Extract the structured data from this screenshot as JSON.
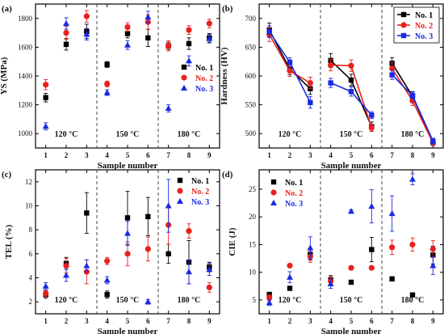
{
  "chart_data": [
    {
      "panel": "(a)",
      "type": "scatter",
      "xlabel": "Sample number",
      "ylabel": "YS (MPa)",
      "x": [
        1,
        2,
        3,
        4,
        5,
        6,
        7,
        8,
        9
      ],
      "xlim": [
        0.5,
        9.5
      ],
      "ylim": [
        900,
        1900
      ],
      "yticks": [
        1000,
        1200,
        1400,
        1600,
        1800
      ],
      "series": [
        {
          "name": "No. 1",
          "color": "#000000",
          "marker": "square",
          "values": [
            1250,
            1620,
            1710,
            1480,
            1695,
            1665,
            1610,
            1625,
            1665
          ],
          "errors": [
            30,
            40,
            50,
            20,
            30,
            60,
            25,
            40,
            30
          ]
        },
        {
          "name": "No. 2",
          "color": "#e8211d",
          "marker": "circle",
          "values": [
            1340,
            1700,
            1815,
            1345,
            1740,
            1775,
            1610,
            1720,
            1765
          ],
          "errors": [
            35,
            45,
            40,
            20,
            30,
            50,
            35,
            30,
            30
          ]
        },
        {
          "name": "No. 3",
          "color": "#1b2ae0",
          "marker": "triangle",
          "values": [
            1050,
            1765,
            1690,
            1285,
            1615,
            1810,
            1175,
            1505,
            1660
          ],
          "errors": [
            25,
            40,
            40,
            20,
            30,
            40,
            25,
            35,
            30
          ]
        }
      ],
      "legend": "right",
      "dividers": [
        3.5,
        6.5
      ],
      "temperatures": [
        "120 °C",
        "150 °C",
        "180 °C"
      ]
    },
    {
      "panel": "(b)",
      "type": "line",
      "xlabel": "Sample number",
      "ylabel": "Hardness (HV)",
      "x": [
        1,
        2,
        3,
        4,
        5,
        6,
        7,
        8,
        9
      ],
      "xlim": [
        0.5,
        9.5
      ],
      "ylim": [
        475,
        725
      ],
      "yticks": [
        500,
        550,
        600,
        650,
        700
      ],
      "series": [
        {
          "name": "No. 1",
          "color": "#000000",
          "marker": "square",
          "values": [
            680,
            612,
            578,
            627,
            593,
            512,
            622,
            565,
            485
          ],
          "errors": [
            12,
            10,
            10,
            12,
            10,
            8,
            10,
            8,
            5
          ]
        },
        {
          "name": "No. 2",
          "color": "#e8211d",
          "marker": "circle",
          "values": [
            672,
            609,
            588,
            619,
            618,
            510,
            613,
            557,
            484
          ],
          "errors": [
            12,
            10,
            10,
            10,
            10,
            6,
            10,
            8,
            5
          ]
        },
        {
          "name": "No. 3",
          "color": "#1b2ae0",
          "marker": "square",
          "values": [
            677,
            624,
            554,
            588,
            573,
            532,
            602,
            566,
            487
          ],
          "errors": [
            10,
            8,
            10,
            8,
            8,
            6,
            8,
            6,
            5
          ]
        }
      ],
      "legend": "top-right",
      "dividers": [
        3.5,
        6.5
      ],
      "temperatures": [
        "120 °C",
        "150 °C",
        "180 °C"
      ]
    },
    {
      "panel": "(c)",
      "type": "scatter",
      "xlabel": "Sample number",
      "ylabel": "TEL (%)",
      "x": [
        1,
        2,
        3,
        4,
        5,
        6,
        7,
        8,
        9
      ],
      "xlim": [
        0.5,
        9.5
      ],
      "ylim": [
        1,
        13
      ],
      "yticks": [
        2,
        4,
        6,
        8,
        10,
        12
      ],
      "series": [
        {
          "name": "No. 1",
          "color": "#000000",
          "marker": "square",
          "values": [
            2.6,
            5.2,
            9.4,
            2.6,
            9.0,
            9.1,
            6.0,
            5.3,
            4.9
          ],
          "errors": [
            0.3,
            0.5,
            1.7,
            0.3,
            2.2,
            1.6,
            0.8,
            1.8,
            0.4
          ]
        },
        {
          "name": "No. 2",
          "color": "#e8211d",
          "marker": "circle",
          "values": [
            2.7,
            5.0,
            4.5,
            5.4,
            6.0,
            6.4,
            8.4,
            7.9,
            3.2
          ],
          "errors": [
            0.3,
            0.6,
            1.0,
            0.3,
            1.0,
            1.0,
            1.6,
            0.6,
            0.4
          ]
        },
        {
          "name": "No. 3",
          "color": "#1b2ae0",
          "marker": "triangle",
          "values": [
            3.3,
            4.2,
            5.0,
            3.8,
            7.7,
            2.0,
            10.0,
            4.5,
            4.7
          ],
          "errors": [
            0.3,
            0.5,
            0.5,
            0.3,
            1.0,
            0.2,
            2.2,
            1.0,
            0.5
          ]
        }
      ],
      "legend": "top-right",
      "dividers": [
        3.5,
        6.5
      ],
      "temperatures": [
        "120 °C",
        "150 °C",
        "180 °C"
      ]
    },
    {
      "panel": "(d)",
      "type": "scatter",
      "xlabel": "Sample number",
      "ylabel": "CIE (J)",
      "x": [
        1,
        2,
        3,
        4,
        5,
        6,
        7,
        8,
        9
      ],
      "xlim": [
        0.5,
        9.5
      ],
      "ylim": [
        2.5,
        28.5
      ],
      "yticks": [
        5,
        10,
        15,
        20,
        25
      ],
      "series": [
        {
          "name": "No. 1",
          "color": "#000000",
          "marker": "square",
          "values": [
            6.0,
            7.1,
            13.2,
            8.6,
            8.2,
            14.1,
            8.8,
            5.9,
            13.1
          ],
          "errors": [
            0.3,
            0.3,
            1.0,
            0.8,
            0.3,
            2.2,
            0.3,
            0.3,
            1.6
          ]
        },
        {
          "name": "No. 2",
          "color": "#e8211d",
          "marker": "circle",
          "values": [
            5.4,
            11.2,
            12.8,
            8.4,
            10.8,
            10.8,
            14.5,
            15.0,
            14.2
          ],
          "errors": [
            0.5,
            0.3,
            1.0,
            0.8,
            0.3,
            0.3,
            1.3,
            1.2,
            1.5
          ]
        },
        {
          "name": "No. 3",
          "color": "#1b2ae0",
          "marker": "triangle",
          "values": [
            4.5,
            9.1,
            14.4,
            7.9,
            21.0,
            21.9,
            20.6,
            26.8,
            11.2
          ],
          "errors": [
            0.5,
            1.0,
            2.0,
            0.8,
            0.3,
            3.0,
            3.2,
            1.0,
            1.6
          ]
        }
      ],
      "legend": "top-left",
      "dividers": [
        3.5,
        6.5
      ],
      "temperatures": [
        "120 °C",
        "150 °C",
        "180 °C"
      ]
    }
  ]
}
